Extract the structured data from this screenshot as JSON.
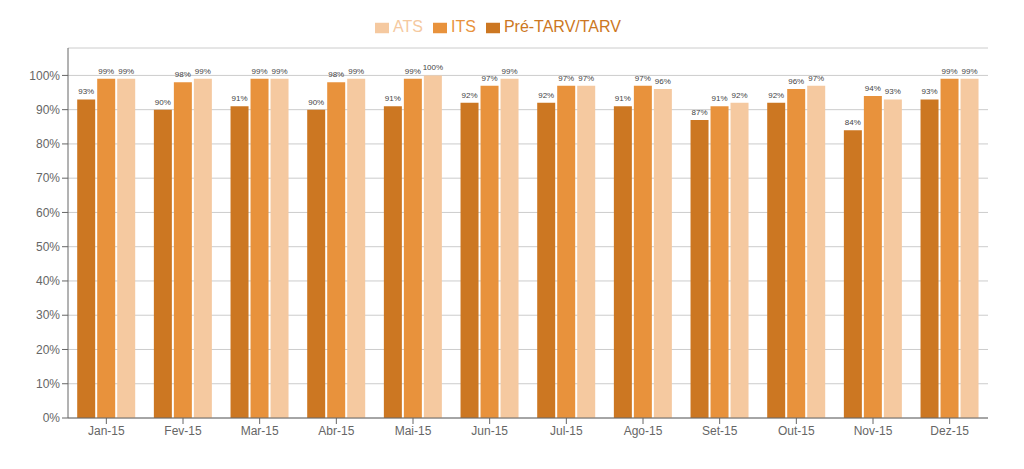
{
  "chart_data": {
    "type": "bar",
    "categories": [
      "Jan-15",
      "Fev-15",
      "Mar-15",
      "Abr-15",
      "Mai-15",
      "Jun-15",
      "Jul-15",
      "Ago-15",
      "Set-15",
      "Out-15",
      "Nov-15",
      "Dez-15"
    ],
    "series": [
      {
        "name": "Pré-TARV/TARV",
        "color": "#cc7722",
        "values": [
          93,
          90,
          91,
          90,
          91,
          92,
          92,
          91,
          87,
          92,
          84,
          93
        ],
        "value_labels": [
          "93%",
          "90%",
          "91%",
          "90%",
          "91%",
          "92%",
          "92%",
          "91%",
          "87%",
          "92%",
          "84%",
          "93%"
        ]
      },
      {
        "name": "ITS",
        "color": "#e8923c",
        "values": [
          99,
          98,
          99,
          98,
          99,
          97,
          97,
          97,
          91,
          96,
          94,
          99
        ],
        "value_labels": [
          "99%",
          "98%",
          "99%",
          "98%",
          "99%",
          "97%",
          "97%",
          "97%",
          "91%",
          "96%",
          "94%",
          "99%"
        ]
      },
      {
        "name": "ATS",
        "color": "#f5c9a0",
        "values": [
          99,
          99,
          99,
          99,
          100,
          99,
          97,
          96,
          92,
          97,
          93,
          99
        ],
        "value_labels": [
          "99%",
          "99%",
          "99%",
          "99%",
          "100%",
          "99%",
          "97%",
          "96%",
          "92%",
          "97%",
          "93%",
          "99%"
        ]
      }
    ],
    "ylim": [
      0,
      108
    ],
    "yticks": [
      {
        "value": 0,
        "label": "0%"
      },
      {
        "value": 10,
        "label": "10%"
      },
      {
        "value": 20,
        "label": "20%"
      },
      {
        "value": 30,
        "label": "30%"
      },
      {
        "value": 40,
        "label": "40%"
      },
      {
        "value": 50,
        "label": "50%"
      },
      {
        "value": 60,
        "label": "60%"
      },
      {
        "value": 70,
        "label": "70%"
      },
      {
        "value": 80,
        "label": "80%"
      },
      {
        "value": 90,
        "label": "90%"
      },
      {
        "value": 100,
        "label": "100%"
      }
    ],
    "grid": true,
    "data_labels": true,
    "legend": "top"
  }
}
